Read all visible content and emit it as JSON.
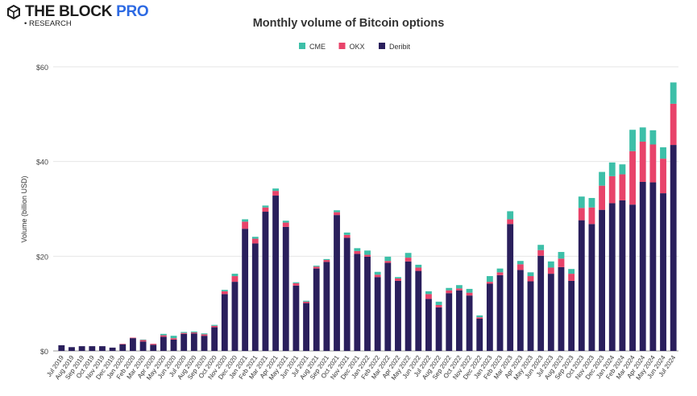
{
  "brand": {
    "name_main": "THE BLOCK",
    "name_pro": "PRO",
    "sub": "• RESEARCH"
  },
  "chart_data": {
    "type": "bar",
    "stacked": true,
    "title": "Monthly volume of Bitcoin options",
    "xlabel": "",
    "ylabel": "Volume (billion USD)",
    "ylim": [
      0,
      60
    ],
    "yticks": [
      0,
      20,
      40,
      60
    ],
    "ytick_labels": [
      "$0",
      "$20",
      "$40",
      "$60"
    ],
    "grid": true,
    "legend_position": "top-center",
    "categories": [
      "Jul 2019",
      "Aug 2019",
      "Sep 2019",
      "Oct 2019",
      "Nov 2019",
      "Dec 2019",
      "Jan 2020",
      "Feb 2020",
      "Mar 2020",
      "Apr 2020",
      "May 2020",
      "Jun 2020",
      "Jul 2020",
      "Aug 2020",
      "Sep 2020",
      "Oct 2020",
      "Nov 2020",
      "Dec 2020",
      "Jan 2021",
      "Feb 2021",
      "Mar 2021",
      "Apr 2021",
      "May 2021",
      "Jun 2021",
      "Jul 2021",
      "Aug 2021",
      "Sep 2021",
      "Oct 2021",
      "Nov 2021",
      "Dec 2021",
      "Jan 2022",
      "Feb 2022",
      "Mar 2022",
      "Apr 2022",
      "May 2022",
      "Jun 2022",
      "Jul 2022",
      "Aug 2022",
      "Sep 2022",
      "Oct 2022",
      "Nov 2022",
      "Dec 2022",
      "Jan 2023",
      "Feb 2023",
      "Mar 2023",
      "Apr 2023",
      "May 2023",
      "Jun 2023",
      "Jul 2023",
      "Aug 2023",
      "Sep 2023",
      "Oct 2023",
      "Nov 2023",
      "Dec 2023",
      "Jan 2024",
      "Feb 2024",
      "Mar 2024",
      "Apr 2024",
      "May 2024",
      "Jun 2024",
      "Jul 2024"
    ],
    "series": [
      {
        "name": "Deribit",
        "color": "#2a1f5c",
        "values": [
          1.2,
          0.8,
          1.0,
          1.0,
          1.0,
          0.7,
          1.4,
          2.7,
          2.0,
          1.3,
          3.0,
          2.4,
          3.6,
          3.7,
          3.2,
          5.0,
          12.0,
          14.6,
          25.8,
          22.7,
          29.4,
          32.8,
          26.2,
          13.8,
          10.1,
          17.4,
          18.8,
          28.7,
          23.9,
          20.5,
          19.9,
          15.6,
          18.6,
          14.8,
          18.9,
          16.9,
          11.0,
          9.2,
          12.2,
          12.8,
          11.7,
          6.8,
          14.2,
          16.0,
          26.8,
          17.1,
          14.7,
          20.1,
          16.3,
          17.7,
          14.8,
          27.6,
          26.8,
          29.8,
          31.2,
          31.8,
          30.9,
          35.7,
          35.6,
          33.3,
          43.5
        ]
      },
      {
        "name": "OKX",
        "color": "#e8436a",
        "values": [
          0,
          0,
          0,
          0,
          0,
          0,
          0.1,
          0.1,
          0.3,
          0.2,
          0.3,
          0.3,
          0.2,
          0.2,
          0.3,
          0.3,
          0.6,
          1.2,
          1.5,
          1.0,
          0.9,
          1.0,
          0.9,
          0.5,
          0.3,
          0.4,
          0.4,
          0.6,
          0.6,
          0.6,
          0.4,
          0.5,
          0.4,
          0.5,
          0.8,
          0.7,
          1.0,
          0.5,
          0.6,
          0.4,
          0.6,
          0.3,
          0.4,
          0.6,
          1.0,
          1.2,
          1.1,
          1.2,
          1.3,
          1.8,
          1.5,
          2.6,
          3.5,
          5.1,
          5.7,
          5.5,
          11.3,
          8.5,
          8.0,
          7.3,
          8.7
        ]
      },
      {
        "name": "CME",
        "color": "#3dbfa8",
        "values": [
          0,
          0,
          0,
          0,
          0,
          0,
          0,
          0,
          0.1,
          0,
          0.3,
          0.5,
          0.2,
          0.2,
          0.2,
          0.2,
          0.3,
          0.5,
          0.5,
          0.4,
          0.4,
          0.5,
          0.4,
          0.2,
          0.2,
          0.2,
          0.2,
          0.4,
          0.5,
          0.6,
          0.9,
          0.6,
          0.9,
          0.3,
          1.0,
          0.6,
          0.6,
          0.7,
          0.5,
          0.7,
          0.8,
          0.4,
          1.2,
          0.8,
          1.7,
          0.7,
          0.8,
          1.1,
          1.3,
          1.4,
          1.0,
          2.4,
          2.0,
          2.9,
          2.9,
          2.1,
          4.5,
          3.0,
          3.0,
          2.4,
          4.5
        ]
      }
    ],
    "legend_order": [
      "CME",
      "OKX",
      "Deribit"
    ]
  }
}
